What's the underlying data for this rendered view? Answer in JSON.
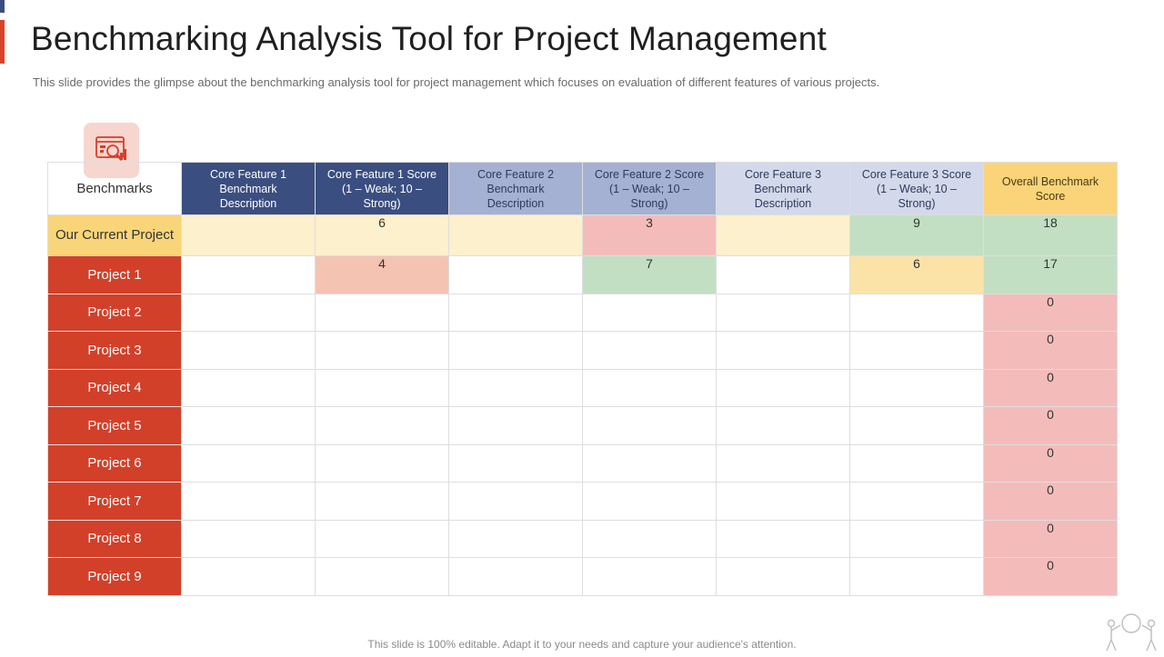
{
  "title": "Benchmarking Analysis Tool for Project Management",
  "subtitle": "This slide provides the glimpse  about the benchmarking analysis tool for project management which  focuses on evaluation of different features of various projects.",
  "benchmark_icon": "analytics-chart-icon",
  "benchmarks_label": "Benchmarks",
  "table": {
    "headers": [
      "Core Feature  1 Benchmark Description",
      "Core Feature 1 Score (1 – Weak; 10 – Strong)",
      "Core Feature  2 Benchmark Description",
      "Core Feature 2 Score (1 – Weak; 10 – Strong)",
      "Core Feature  3 Benchmark Description",
      "Core Feature 3 Score (1 – Weak; 10 – Strong)",
      "Overall Benchmark Score"
    ],
    "rows": [
      {
        "label": "Our Current Project",
        "cells": [
          "",
          "6",
          "",
          "3",
          "",
          "9",
          "18"
        ]
      },
      {
        "label": "Project 1",
        "cells": [
          "",
          "4",
          "",
          "7",
          "",
          "6",
          "17"
        ]
      },
      {
        "label": "Project 2",
        "cells": [
          "",
          "",
          "",
          "",
          "",
          "",
          "0"
        ]
      },
      {
        "label": "Project 3",
        "cells": [
          "",
          "",
          "",
          "",
          "",
          "",
          "0"
        ]
      },
      {
        "label": "Project 4",
        "cells": [
          "",
          "",
          "",
          "",
          "",
          "",
          "0"
        ]
      },
      {
        "label": "Project 5",
        "cells": [
          "",
          "",
          "",
          "",
          "",
          "",
          "0"
        ]
      },
      {
        "label": "Project 6",
        "cells": [
          "",
          "",
          "",
          "",
          "",
          "",
          "0"
        ]
      },
      {
        "label": "Project 7",
        "cells": [
          "",
          "",
          "",
          "",
          "",
          "",
          "0"
        ]
      },
      {
        "label": "Project 8",
        "cells": [
          "",
          "",
          "",
          "",
          "",
          "",
          "0"
        ]
      },
      {
        "label": "Project 9",
        "cells": [
          "",
          "",
          "",
          "",
          "",
          "",
          "0"
        ]
      }
    ]
  },
  "footer": "This slide is 100% editable. Adapt it to your needs and capture your audience's attention.",
  "colors": {
    "accent_red": "#d2402a",
    "accent_navy": "#3b4e80",
    "header_gold": "#fbd47a"
  }
}
